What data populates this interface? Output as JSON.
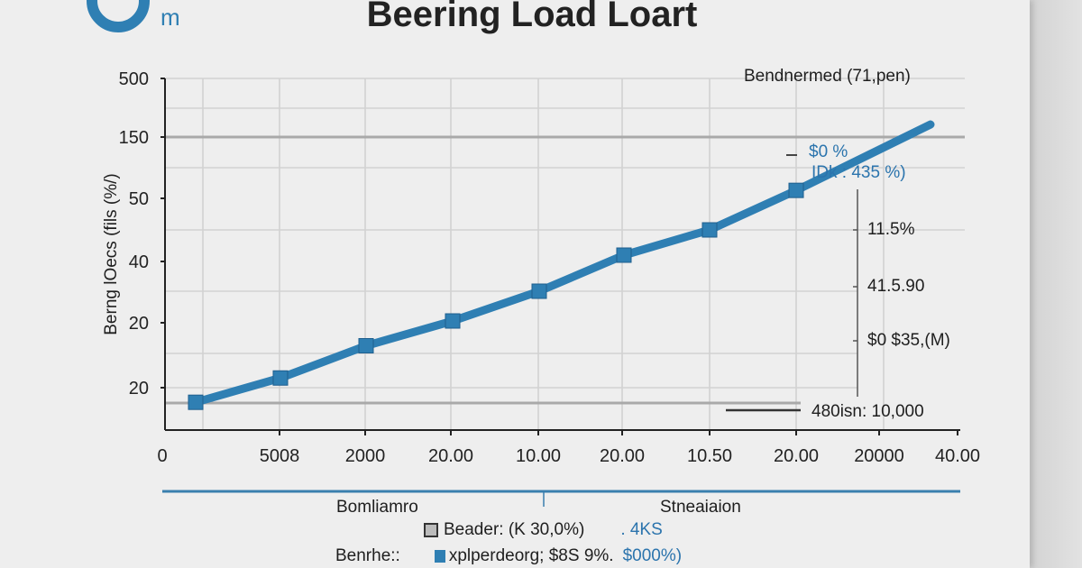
{
  "logo": {
    "text": "m",
    "color": "#2f7fb3"
  },
  "chart_data": {
    "type": "line",
    "title": "Beering Load Loart",
    "ylabel": "Berng lOecs (fils (%/)",
    "xlabel": "",
    "y_ticks": [
      "500",
      "150",
      "50",
      "40",
      "20",
      "20"
    ],
    "x_ticks": [
      "0",
      "5008",
      "2000",
      "20.00",
      "10.00",
      "20.00",
      "10.50",
      "20.00",
      "20000",
      "40.00"
    ],
    "series": [
      {
        "color": "#2f7fb3",
        "marker": "square",
        "points": [
          {
            "x": "0",
            "y": 8
          },
          {
            "x": "5008",
            "y": 15
          },
          {
            "x": "2000",
            "y": 23
          },
          {
            "x": "20.00",
            "y": 28
          },
          {
            "x": "10.00",
            "y": 34
          },
          {
            "x": "20.00",
            "y": 41
          },
          {
            "x": "10.50",
            "y": 45
          },
          {
            "x": "20.00",
            "y": 63
          },
          {
            "x": "40.00",
            "y": 225
          }
        ]
      }
    ],
    "grid": true,
    "annotations": {
      "top_right": "Bendnermed (71,pen)",
      "callout_line1": "$0 %",
      "callout_line2": "IDk : 435 %)",
      "right_axis_ticks": [
        "11.5%",
        "41.5.90",
        "$0 $35,(M)"
      ],
      "baseline_label": "480isn: 10,000"
    }
  },
  "footer": {
    "left_heading": "Bomliamro",
    "right_heading": "Stneaiaion",
    "legend": [
      {
        "label": "Beader: (K 30,0%)",
        "extra": ". 4KS",
        "color": "#333333"
      },
      {
        "prefix": "Benrhe::",
        "label": "xplperdeorg; $8S 9%.",
        "extra": "$000%)",
        "color": "#2f7fb3"
      }
    ]
  }
}
